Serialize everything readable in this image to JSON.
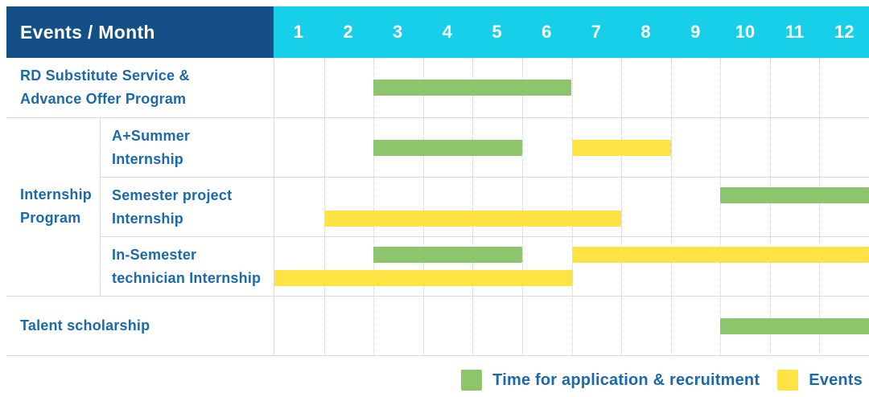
{
  "header": {
    "title": "Events / Month"
  },
  "colors": {
    "header_bg": "#144f88",
    "months_bg": "#17cfe8",
    "text_blue": "#1b69ad",
    "grid": "#dcdcdc"
  },
  "chart_data": {
    "type": "gantt",
    "title": "Events / Month",
    "x_unit": "month",
    "x_ticks": [
      "1",
      "2",
      "3",
      "4",
      "5",
      "6",
      "7",
      "8",
      "9",
      "10",
      "11",
      "12"
    ],
    "x_range": [
      1,
      12
    ],
    "grid": "dotted-vertical-month-lines",
    "legend_position": "bottom-right",
    "legend": [
      {
        "key": "application",
        "label": "Time for application & recruitment",
        "color": "#8cc56b"
      },
      {
        "key": "event",
        "label": "Events",
        "color": "#ffe344"
      }
    ],
    "rows": [
      {
        "group": null,
        "label": "RD Substitute Service &\nAdvance Offer Program",
        "lines": 1,
        "bars": [
          {
            "type": "application",
            "start_month": 3,
            "end_month": 6,
            "line": 0
          }
        ]
      },
      {
        "group": "Internship\nProgram",
        "label": "A+Summer\nInternship",
        "lines": 1,
        "bars": [
          {
            "type": "application",
            "start_month": 3,
            "end_month": 5,
            "line": 0
          },
          {
            "type": "event",
            "start_month": 7,
            "end_month": 8,
            "line": 0
          }
        ]
      },
      {
        "group": "Internship\nProgram",
        "label": "Semester project\nInternship",
        "lines": 2,
        "bars": [
          {
            "type": "application",
            "start_month": 10,
            "end_month": 12,
            "line": 0
          },
          {
            "type": "event",
            "start_month": 2,
            "end_month": 7,
            "line": 1
          }
        ]
      },
      {
        "group": "Internship\nProgram",
        "label": "In-Semester\ntechnician Internship",
        "lines": 2,
        "bars": [
          {
            "type": "application",
            "start_month": 3,
            "end_month": 5,
            "line": 0
          },
          {
            "type": "event",
            "start_month": 7,
            "end_month": 12,
            "line": 0
          },
          {
            "type": "event",
            "start_month": 1,
            "end_month": 6,
            "line": 1
          }
        ]
      },
      {
        "group": null,
        "label": "Talent scholarship",
        "lines": 1,
        "bars": [
          {
            "type": "application",
            "start_month": 10,
            "end_month": 12,
            "line": 0
          }
        ]
      }
    ]
  }
}
